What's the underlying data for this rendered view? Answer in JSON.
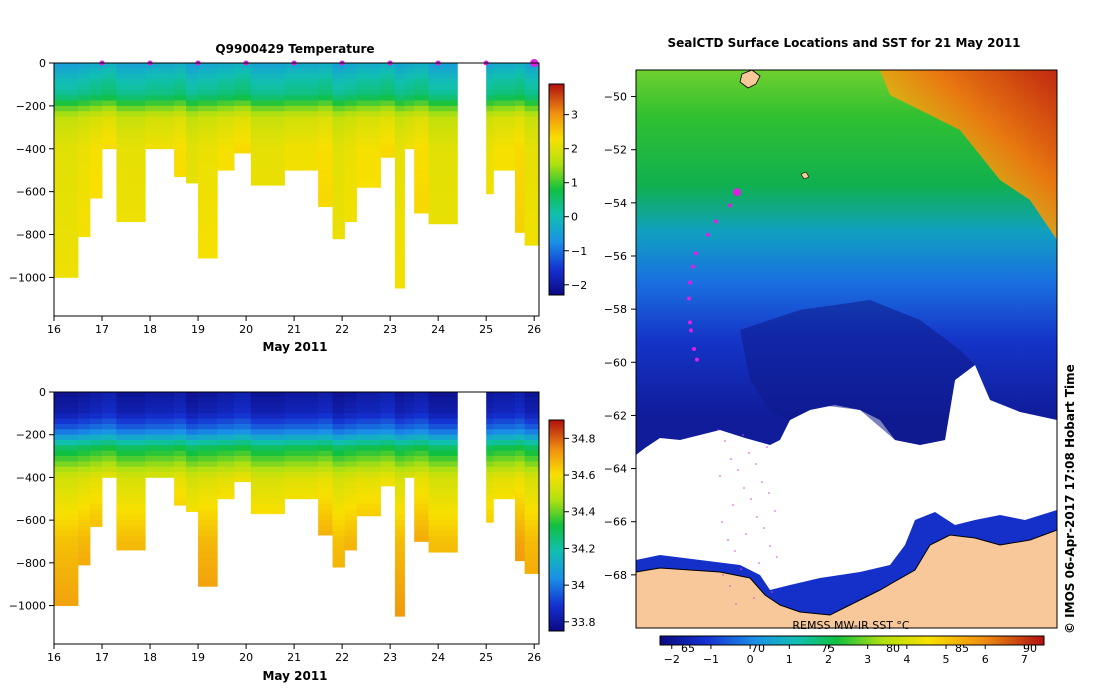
{
  "chart_data": [
    {
      "type": "heatmap",
      "title": "Q9900429  Temperature",
      "xlabel": "May 2011",
      "ylabel": "",
      "xlim": [
        16,
        26.1
      ],
      "ylim": [
        -1180,
        0
      ],
      "x_ticks": [
        "16",
        "17",
        "18",
        "19",
        "20",
        "21",
        "22",
        "23",
        "24",
        "25",
        "26"
      ],
      "y_ticks": [
        "0",
        "−200",
        "−400",
        "−600",
        "−800",
        "−1000"
      ],
      "colorbar": {
        "min": -2.3,
        "max": 3.9,
        "ticks": [
          "3",
          "2",
          "1",
          "0",
          "−1",
          "−2"
        ]
      },
      "profile_max_depths": [
        {
          "x0": 16.0,
          "x1": 16.5,
          "depth": 1000
        },
        {
          "x0": 16.5,
          "x1": 16.75,
          "depth": 810
        },
        {
          "x0": 16.75,
          "x1": 17.0,
          "depth": 630
        },
        {
          "x0": 17.0,
          "x1": 17.3,
          "depth": 400
        },
        {
          "x0": 17.3,
          "x1": 17.9,
          "depth": 740
        },
        {
          "x0": 17.9,
          "x1": 18.5,
          "depth": 400
        },
        {
          "x0": 18.5,
          "x1": 18.75,
          "depth": 530
        },
        {
          "x0": 18.75,
          "x1": 19.0,
          "depth": 560
        },
        {
          "x0": 19.0,
          "x1": 19.4,
          "depth": 910
        },
        {
          "x0": 19.4,
          "x1": 19.75,
          "depth": 500
        },
        {
          "x0": 19.75,
          "x1": 20.1,
          "depth": 420
        },
        {
          "x0": 20.1,
          "x1": 20.8,
          "depth": 570
        },
        {
          "x0": 20.8,
          "x1": 21.5,
          "depth": 500
        },
        {
          "x0": 21.5,
          "x1": 21.8,
          "depth": 670
        },
        {
          "x0": 21.8,
          "x1": 22.05,
          "depth": 820
        },
        {
          "x0": 22.05,
          "x1": 22.3,
          "depth": 740
        },
        {
          "x0": 22.3,
          "x1": 22.8,
          "depth": 580
        },
        {
          "x0": 22.8,
          "x1": 23.1,
          "depth": 440
        },
        {
          "x0": 23.1,
          "x1": 23.3,
          "depth": 1050
        },
        {
          "x0": 23.3,
          "x1": 23.5,
          "depth": 400
        },
        {
          "x0": 23.5,
          "x1": 23.8,
          "depth": 700
        },
        {
          "x0": 23.8,
          "x1": 24.4,
          "depth": 750
        },
        {
          "x0": 25.0,
          "x1": 25.15,
          "depth": 610
        },
        {
          "x0": 25.15,
          "x1": 25.6,
          "depth": 500
        },
        {
          "x0": 25.6,
          "x1": 25.8,
          "depth": 790
        },
        {
          "x0": 25.8,
          "x1": 26.1,
          "depth": 850
        }
      ],
      "data_gap": [
        24.4,
        25.0
      ],
      "value_profile": [
        {
          "depth": 0,
          "value": -0.4
        },
        {
          "depth": 80,
          "value": 0.1
        },
        {
          "depth": 150,
          "value": 0.4
        },
        {
          "depth": 200,
          "value": 1.2
        },
        {
          "depth": 260,
          "value": 1.9
        },
        {
          "depth": 400,
          "value": 2.2
        },
        {
          "depth": 1050,
          "value": 2.35
        }
      ],
      "station_markers": [
        17.0,
        18.0,
        19.0,
        20.0,
        21.0,
        22.0,
        23.0,
        24.0,
        25.0,
        26.0
      ]
    },
    {
      "type": "heatmap",
      "title": "",
      "xlabel": "May 2011",
      "ylabel": "",
      "xlim": [
        16,
        26.1
      ],
      "ylim": [
        -1180,
        0
      ],
      "x_ticks": [
        "16",
        "17",
        "18",
        "19",
        "20",
        "21",
        "22",
        "23",
        "24",
        "25",
        "26"
      ],
      "y_ticks": [
        "0",
        "−200",
        "−400",
        "−600",
        "−800",
        "−1000"
      ],
      "colorbar": {
        "min": 33.75,
        "max": 34.9,
        "ticks": [
          "34.8",
          "34.6",
          "34.4",
          "34.2",
          "34",
          "33.8"
        ]
      },
      "value_profile": [
        {
          "depth": 0,
          "value": 33.8
        },
        {
          "depth": 100,
          "value": 33.85
        },
        {
          "depth": 180,
          "value": 34.0
        },
        {
          "depth": 260,
          "value": 34.3
        },
        {
          "depth": 400,
          "value": 34.55
        },
        {
          "depth": 700,
          "value": 34.68
        },
        {
          "depth": 1050,
          "value": 34.74
        }
      ]
    },
    {
      "type": "heatmap",
      "title": "SealCTD Surface Locations and SST for 21 May 2011",
      "xlabel": "",
      "ylabel": "",
      "lat_range": [
        -70,
        -49
      ],
      "y_ticks": [
        "−50",
        "−52",
        "−54",
        "−56",
        "−58",
        "−60",
        "−62",
        "−64",
        "−66",
        "−68"
      ],
      "lon_ticks_printed": [
        "65",
        "70",
        "75",
        "80",
        "85",
        "90"
      ],
      "colorbar": {
        "label": "REMSS MW-IR SST °C",
        "min": -2.3,
        "max": 7.5,
        "ticks": [
          "−2",
          "−1",
          "0",
          "1",
          "2",
          "3",
          "4",
          "5",
          "6",
          "7"
        ]
      },
      "seal_track_lat": [
        -53.6,
        -54.1,
        -54.7,
        -55.2,
        -55.9,
        -56.4,
        -57.0,
        -57.6,
        -58.5,
        -58.8,
        -59.5,
        -59.9
      ],
      "current_position_lat": -53.6
    }
  ],
  "credit": "©  IMOS 06-Apr-2017 17:08 Hobart Time"
}
